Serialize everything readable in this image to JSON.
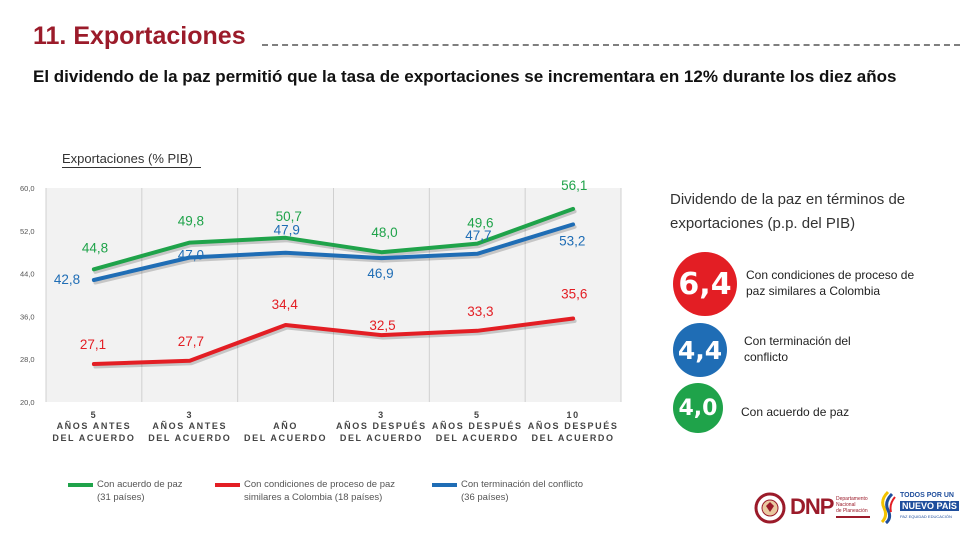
{
  "header": {
    "title": "11. Exportaciones",
    "subtitle": "El dividendo de la paz permitió que la tasa de exportaciones se incrementara en 12% durante los diez años"
  },
  "chart_caption": "Exportaciones (% PIB)",
  "chart_data": {
    "type": "line",
    "title": "",
    "ylim": [
      20,
      60
    ],
    "y_ticks": [
      "20,0",
      "28,0",
      "36,0",
      "44,0",
      "52,0",
      "60,0"
    ],
    "grid": "vertical",
    "legend_position": "bottom",
    "categories": [
      {
        "num": "5",
        "line1": "AÑOS ANTES",
        "line2": "DEL ACUERDO"
      },
      {
        "num": "3",
        "line1": "AÑOS ANTES",
        "line2": "DEL ACUERDO"
      },
      {
        "num": "",
        "line1": "AÑO",
        "line2": "DEL ACUERDO"
      },
      {
        "num": "3",
        "line1": "AÑOS DESPUÉS",
        "line2": "DEL ACUERDO"
      },
      {
        "num": "5",
        "line1": "AÑOS DESPUÉS",
        "line2": "DEL ACUERDO"
      },
      {
        "num": "10",
        "line1": "AÑOS DESPUÉS",
        "line2": "DEL ACUERDO"
      }
    ],
    "series": [
      {
        "name": "Con acuerdo de paz (31 países)",
        "legend_line1": "Con acuerdo de paz",
        "legend_line2": "(31 países)",
        "color": "#1fa34a",
        "values": [
          44.8,
          49.8,
          50.7,
          48.0,
          49.6,
          56.1
        ],
        "labels": [
          "44,8",
          "49,8",
          "50,7",
          "48,0",
          "49,6",
          "56,1"
        ]
      },
      {
        "name": "Con condiciones de proceso de paz similares a Colombia (18 países)",
        "legend_line1": "Con condiciones de proceso de paz",
        "legend_line2": "similares a Colombia (18 países)",
        "color": "#e31e24",
        "values": [
          27.1,
          27.7,
          34.4,
          32.5,
          33.3,
          35.6
        ],
        "labels": [
          "27,1",
          "27,7",
          "34,4",
          "32,5",
          "33,3",
          "35,6"
        ]
      },
      {
        "name": "Con terminación del conflicto (36 países)",
        "legend_line1": "Con terminación del conflicto",
        "legend_line2": "(36 países)",
        "color": "#1f6db5",
        "values": [
          42.8,
          47.0,
          47.9,
          46.9,
          47.7,
          53.2
        ],
        "labels": [
          "42,8",
          "47,0",
          "47,9",
          "46,9",
          "47,7",
          "53,2"
        ]
      }
    ]
  },
  "dividend": {
    "title": "Dividendo de la paz en términos de exportaciones (p.p. del PIB)",
    "items": [
      {
        "value": "6,4",
        "label": "Con condiciones de proceso de paz similares a Colombia",
        "color": "#e31e24"
      },
      {
        "value": "4,4",
        "label": "Con terminación del conflicto",
        "color": "#1f6db5"
      },
      {
        "value": "4,0",
        "label": "Con acuerdo de paz",
        "color": "#1fa34a"
      }
    ]
  },
  "logos": {
    "dnp": "DNP",
    "dnp_sub1": "Departamento",
    "dnp_sub2": "Nacional",
    "dnp_sub3": "de Planeación",
    "tpnp1": "TODOS POR UN",
    "tpnp2": "NUEVO PAÍS",
    "tpnp3": "PAZ  EQUIDAD  EDUCACIÓN"
  }
}
